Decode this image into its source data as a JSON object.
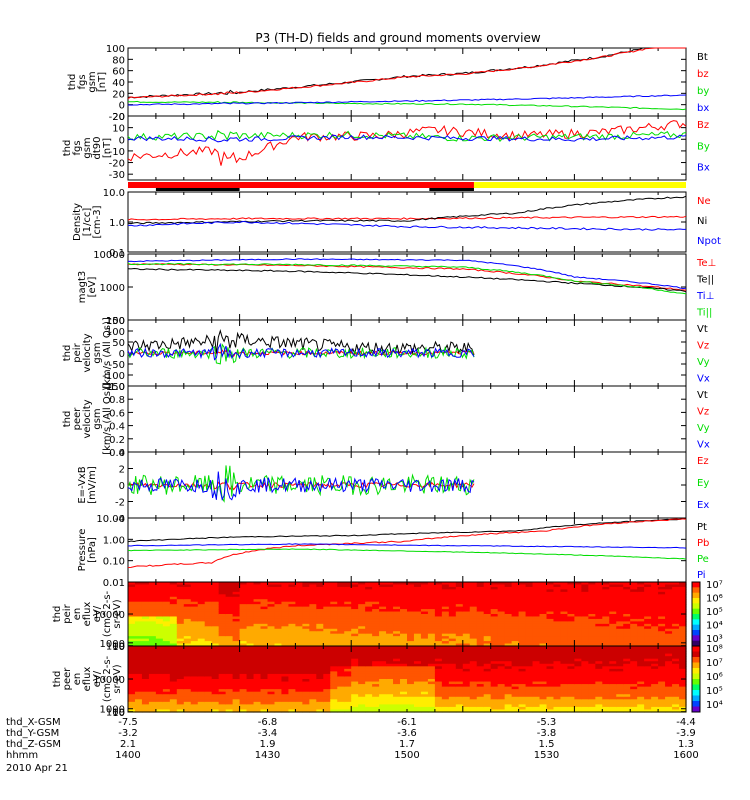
{
  "title": "P3 (TH-D) fields and ground moments overview",
  "date_label": "2010 Apr 21",
  "colors": {
    "black": "#000000",
    "red": "#ff0000",
    "green": "#00dd00",
    "blue": "#0000ff",
    "yellow": "#ffff00"
  },
  "ephemeris": {
    "rows": [
      {
        "label": "thd_X-GSM",
        "values": [
          "-7.5",
          "-6.8",
          "-6.1",
          "-5.3",
          "-4.4"
        ]
      },
      {
        "label": "thd_Y-GSM",
        "values": [
          "-3.2",
          "-3.4",
          "-3.6",
          "-3.8",
          "-3.9"
        ]
      },
      {
        "label": "thd_Z-GSM",
        "values": [
          "2.1",
          "1.9",
          "1.7",
          "1.5",
          "1.3"
        ]
      },
      {
        "label": "hhmm",
        "values": [
          "1400",
          "1430",
          "1500",
          "1530",
          "1600"
        ]
      }
    ]
  },
  "chart_data": [
    {
      "id": "fgs_gsm",
      "type": "line",
      "ylabel": [
        "thd",
        "fgs",
        "gsm",
        "[nT]"
      ],
      "ylim": [
        -20,
        100
      ],
      "yticks": [
        "100",
        "80",
        "60",
        "40",
        "20",
        "0",
        "-20"
      ],
      "ytick_values": [
        100,
        80,
        60,
        40,
        20,
        0,
        -20
      ],
      "legend": [
        {
          "name": "Bt",
          "color": "#000000"
        },
        {
          "name": "bz",
          "color": "#ff0000"
        },
        {
          "name": "by",
          "color": "#00dd00"
        },
        {
          "name": "bx",
          "color": "#0000ff"
        }
      ],
      "series": [
        {
          "name": "Bt",
          "color": "#000000",
          "noise": 2,
          "x": [
            0,
            0.2,
            0.38,
            0.5,
            0.6,
            0.72,
            0.85,
            0.93,
            1
          ],
          "y": [
            13,
            22,
            38,
            50,
            55,
            67,
            85,
            100,
            110
          ]
        },
        {
          "name": "bz",
          "color": "#ff0000",
          "noise": 1.5,
          "x": [
            0,
            0.2,
            0.38,
            0.5,
            0.6,
            0.72,
            0.85,
            0.93,
            1
          ],
          "y": [
            12,
            21,
            37,
            49,
            54,
            66,
            84,
            99,
            109
          ]
        },
        {
          "name": "by",
          "color": "#00dd00",
          "noise": 1,
          "x": [
            0,
            0.2,
            0.4,
            0.6,
            0.8,
            1
          ],
          "y": [
            5,
            4,
            2,
            1,
            -3,
            -8
          ]
        },
        {
          "name": "bx",
          "color": "#0000ff",
          "noise": 1,
          "x": [
            0,
            0.2,
            0.4,
            0.6,
            0.8,
            1
          ],
          "y": [
            0,
            2,
            5,
            8,
            12,
            17
          ]
        }
      ]
    },
    {
      "id": "fgs_gsm_dt",
      "type": "line",
      "ylabel": [
        "thd",
        "fgs",
        "gsm",
        "dt90",
        "[nT]"
      ],
      "ylim": [
        -35,
        20
      ],
      "yticks": [
        "20",
        "10",
        "0",
        "-10",
        "-20",
        "-30"
      ],
      "ytick_values": [
        20,
        10,
        0,
        -10,
        -20,
        -30
      ],
      "legend": [
        {
          "name": "Bz",
          "color": "#ff0000"
        },
        {
          "name": "By",
          "color": "#00dd00"
        },
        {
          "name": "Bx",
          "color": "#0000ff"
        }
      ],
      "series": [
        {
          "name": "Bz",
          "color": "#ff0000",
          "noise": 4,
          "x": [
            0,
            0.15,
            0.18,
            0.3,
            0.45,
            0.55,
            0.7,
            0.85,
            1
          ],
          "y": [
            -15,
            -10,
            -20,
            2,
            3,
            8,
            3,
            6,
            14
          ]
        },
        {
          "name": "By",
          "color": "#00dd00",
          "noise": 3,
          "x": [
            0,
            0.2,
            0.4,
            0.6,
            0.8,
            1
          ],
          "y": [
            2,
            3,
            4,
            1,
            2,
            4
          ]
        },
        {
          "name": "Bx",
          "color": "#0000ff",
          "noise": 2,
          "x": [
            0,
            0.2,
            0.4,
            0.6,
            0.8,
            1
          ],
          "y": [
            1,
            0,
            2,
            1,
            0,
            2
          ]
        }
      ]
    },
    {
      "id": "density",
      "type": "line",
      "log": true,
      "ylabel": [
        "Density",
        "[1/cc]",
        "[cm-3]"
      ],
      "ylim": [
        0.1,
        10
      ],
      "yticks": [
        "10.0",
        "1.0",
        "0.1"
      ],
      "ytick_values": [
        10,
        1,
        0.1
      ],
      "legend": [
        {
          "name": "Ne",
          "color": "#ff0000"
        },
        {
          "name": "Ni",
          "color": "#000000"
        },
        {
          "name": "Npot",
          "color": "#0000ff"
        }
      ],
      "series": [
        {
          "name": "Ne",
          "color": "#ff0000",
          "noise": 0.05,
          "x": [
            0,
            0.2,
            0.5,
            1
          ],
          "y": [
            1.2,
            1.3,
            1.3,
            1.5
          ]
        },
        {
          "name": "Ni",
          "color": "#000000",
          "noise": 0.05,
          "x": [
            0,
            0.3,
            0.5,
            0.7,
            1
          ],
          "y": [
            0.9,
            1.1,
            1.1,
            2,
            7
          ]
        },
        {
          "name": "Npot",
          "color": "#0000ff",
          "noise": 0.06,
          "x": [
            0,
            0.2,
            0.5,
            0.8,
            1
          ],
          "y": [
            0.75,
            1,
            0.7,
            0.6,
            0.55
          ]
        }
      ]
    },
    {
      "id": "temperature",
      "type": "line",
      "log": true,
      "ylabel": [
        "magt3",
        "[eV]"
      ],
      "ylim": [
        100,
        10000
      ],
      "yticks": [
        "10000",
        "1000",
        "100"
      ],
      "ytick_values": [
        10000,
        1000,
        100
      ],
      "legend": [
        {
          "name": "Te⊥",
          "color": "#ff0000"
        },
        {
          "name": "Te||",
          "color": "#000000"
        },
        {
          "name": "Ti⊥",
          "color": "#0000ff"
        },
        {
          "name": "Ti||",
          "color": "#00dd00"
        }
      ],
      "series": [
        {
          "name": "Te⊥",
          "color": "#ff0000",
          "noise": 0.04,
          "x": [
            0,
            0.3,
            0.6,
            0.8,
            1
          ],
          "y": [
            5000,
            4500,
            3500,
            1500,
            800
          ]
        },
        {
          "name": "Te||",
          "color": "#000000",
          "noise": 0.04,
          "x": [
            0,
            0.3,
            0.6,
            0.8,
            1
          ],
          "y": [
            3500,
            3000,
            2000,
            1300,
            750
          ]
        },
        {
          "name": "Ti⊥",
          "color": "#0000ff",
          "noise": 0.03,
          "x": [
            0,
            0.3,
            0.6,
            0.8,
            1
          ],
          "y": [
            6000,
            7000,
            6500,
            2000,
            900
          ]
        },
        {
          "name": "Ti||",
          "color": "#00dd00",
          "noise": 0.04,
          "x": [
            0,
            0.3,
            0.6,
            0.8,
            1
          ],
          "y": [
            5000,
            4800,
            4000,
            1500,
            600
          ]
        }
      ]
    },
    {
      "id": "peir_velocity",
      "type": "line",
      "ylabel": [
        "thd",
        "peir",
        "velocity",
        "gsm",
        "[km/s (All Qs)]"
      ],
      "ylim": [
        -150,
        150
      ],
      "yticks": [
        "150",
        "100",
        "50",
        "0",
        "-50",
        "-100",
        "-150"
      ],
      "ytick_values": [
        150,
        100,
        50,
        0,
        -50,
        -100,
        -150
      ],
      "legend": [
        {
          "name": "Vt",
          "color": "#000000"
        },
        {
          "name": "Vz",
          "color": "#ff0000"
        },
        {
          "name": "Vy",
          "color": "#00dd00"
        },
        {
          "name": "Vx",
          "color": "#0000ff"
        }
      ],
      "series": [
        {
          "name": "Vt",
          "color": "#000000",
          "noise": 30,
          "xend": 0.62,
          "x": [
            0,
            0.2,
            0.4,
            0.62
          ],
          "y": [
            30,
            60,
            25,
            20
          ]
        },
        {
          "name": "Vz",
          "color": "#ff0000",
          "noise": 8,
          "xend": 0.62,
          "x": [
            0,
            0.62
          ],
          "y": [
            0,
            0
          ]
        },
        {
          "name": "Vy",
          "color": "#00dd00",
          "noise": 25,
          "xend": 0.62,
          "x": [
            0,
            0.62
          ],
          "y": [
            0,
            0
          ]
        },
        {
          "name": "Vx",
          "color": "#0000ff",
          "noise": 20,
          "xend": 0.62,
          "x": [
            0,
            0.62
          ],
          "y": [
            0,
            0
          ]
        }
      ]
    },
    {
      "id": "peer_velocity",
      "type": "line",
      "ylabel": [
        "thd",
        "peer",
        "velocity",
        "gsm",
        "[km/s (All Qs)]"
      ],
      "ylim": [
        0,
        1
      ],
      "yticks": [
        "1.0",
        "0.8",
        "0.6",
        "0.4",
        "0.2",
        "0.0"
      ],
      "ytick_values": [
        1,
        0.8,
        0.6,
        0.4,
        0.2,
        0
      ],
      "legend": [
        {
          "name": "Vt",
          "color": "#000000"
        },
        {
          "name": "Vz",
          "color": "#ff0000"
        },
        {
          "name": "Vy",
          "color": "#00dd00"
        },
        {
          "name": "Vx",
          "color": "#0000ff"
        }
      ],
      "series": []
    },
    {
      "id": "efield",
      "type": "line",
      "ylabel": [
        "E=-VxB",
        "[mV/m]"
      ],
      "ylim": [
        -4,
        4
      ],
      "yticks": [
        "4",
        "2",
        "0",
        "-2",
        "-4"
      ],
      "ytick_values": [
        4,
        2,
        0,
        -2,
        -4
      ],
      "legend": [
        {
          "name": "Ez",
          "color": "#ff0000"
        },
        {
          "name": "Ey",
          "color": "#00dd00"
        },
        {
          "name": "Ex",
          "color": "#0000ff"
        }
      ],
      "series": [
        {
          "name": "Ez",
          "color": "#ff0000",
          "noise": 0.3,
          "xend": 0.62,
          "x": [
            0,
            0.62
          ],
          "y": [
            0,
            0
          ]
        },
        {
          "name": "Ey",
          "color": "#00dd00",
          "noise": 1.2,
          "xend": 0.62,
          "x": [
            0,
            0.62
          ],
          "y": [
            0,
            0
          ]
        },
        {
          "name": "Ex",
          "color": "#0000ff",
          "noise": 0.9,
          "xend": 0.62,
          "x": [
            0,
            0.62
          ],
          "y": [
            0,
            0
          ]
        }
      ]
    },
    {
      "id": "pressure",
      "type": "line",
      "log": true,
      "ylabel": [
        "Pressure",
        "[nPa]"
      ],
      "ylim": [
        0.01,
        10
      ],
      "yticks": [
        "10.00",
        "1.00",
        "0.10",
        "0.01"
      ],
      "ytick_values": [
        10,
        1,
        0.1,
        0.01
      ],
      "legend": [
        {
          "name": "Pt",
          "color": "#000000"
        },
        {
          "name": "Pb",
          "color": "#ff0000"
        },
        {
          "name": "Pe",
          "color": "#00dd00"
        },
        {
          "name": "Pi",
          "color": "#0000ff"
        }
      ],
      "series": [
        {
          "name": "Pt",
          "color": "#000000",
          "noise": 0.04,
          "x": [
            0,
            0.2,
            0.4,
            0.7,
            1
          ],
          "y": [
            0.8,
            1.3,
            1.5,
            2.5,
            9
          ]
        },
        {
          "name": "Pb",
          "color": "#ff0000",
          "noise": 0.06,
          "x": [
            0,
            0.15,
            0.3,
            0.5,
            0.75,
            1
          ],
          "y": [
            0.05,
            0.08,
            0.5,
            0.8,
            2.5,
            9
          ]
        },
        {
          "name": "Pe",
          "color": "#00dd00",
          "noise": 0.03,
          "x": [
            0,
            0.3,
            0.6,
            1
          ],
          "y": [
            0.3,
            0.35,
            0.25,
            0.12
          ]
        },
        {
          "name": "Pi",
          "color": "#0000ff",
          "noise": 0.03,
          "x": [
            0,
            0.3,
            0.6,
            1
          ],
          "y": [
            0.5,
            0.6,
            0.5,
            0.4
          ]
        }
      ]
    },
    {
      "id": "peir_eflux",
      "type": "heatmap",
      "ylabel": [
        "thd",
        "peir",
        "en",
        "eflux",
        "eV/",
        "(cm^2-s-",
        "sr-eV)"
      ],
      "ylim": [
        10,
        20000
      ],
      "yticks": [
        "10000",
        "1000",
        "100",
        "10"
      ],
      "ytick_values": [
        10000,
        1000,
        100,
        10
      ],
      "colorbar_ticks": [
        "10⁷",
        "10⁶",
        "10⁵",
        "10⁴",
        "10³"
      ],
      "colorbar_values": [
        7,
        6,
        5,
        4,
        3
      ]
    },
    {
      "id": "peer_eflux",
      "type": "heatmap",
      "ylabel": [
        "thd",
        "peer",
        "en",
        "eflux",
        "eV/",
        "(cm^2-s-",
        "sr-eV)"
      ],
      "ylim": [
        10,
        20000
      ],
      "yticks": [
        "10000",
        "1000",
        "100",
        "10"
      ],
      "ytick_values": [
        10000,
        1000,
        100,
        10
      ],
      "colorbar_ticks": [
        "10⁸",
        "10⁷",
        "10⁶",
        "10⁵",
        "10⁴"
      ],
      "colorbar_values": [
        8,
        7,
        6,
        5,
        4
      ]
    }
  ],
  "mode_bar": {
    "segments": [
      {
        "from": 0.0,
        "to": 0.62,
        "color": "#ff0000"
      },
      {
        "from": 0.62,
        "to": 1.0,
        "color": "#ffff00"
      }
    ],
    "black_segments": [
      {
        "from": 0.05,
        "to": 0.2
      },
      {
        "from": 0.54,
        "to": 0.62
      }
    ]
  }
}
